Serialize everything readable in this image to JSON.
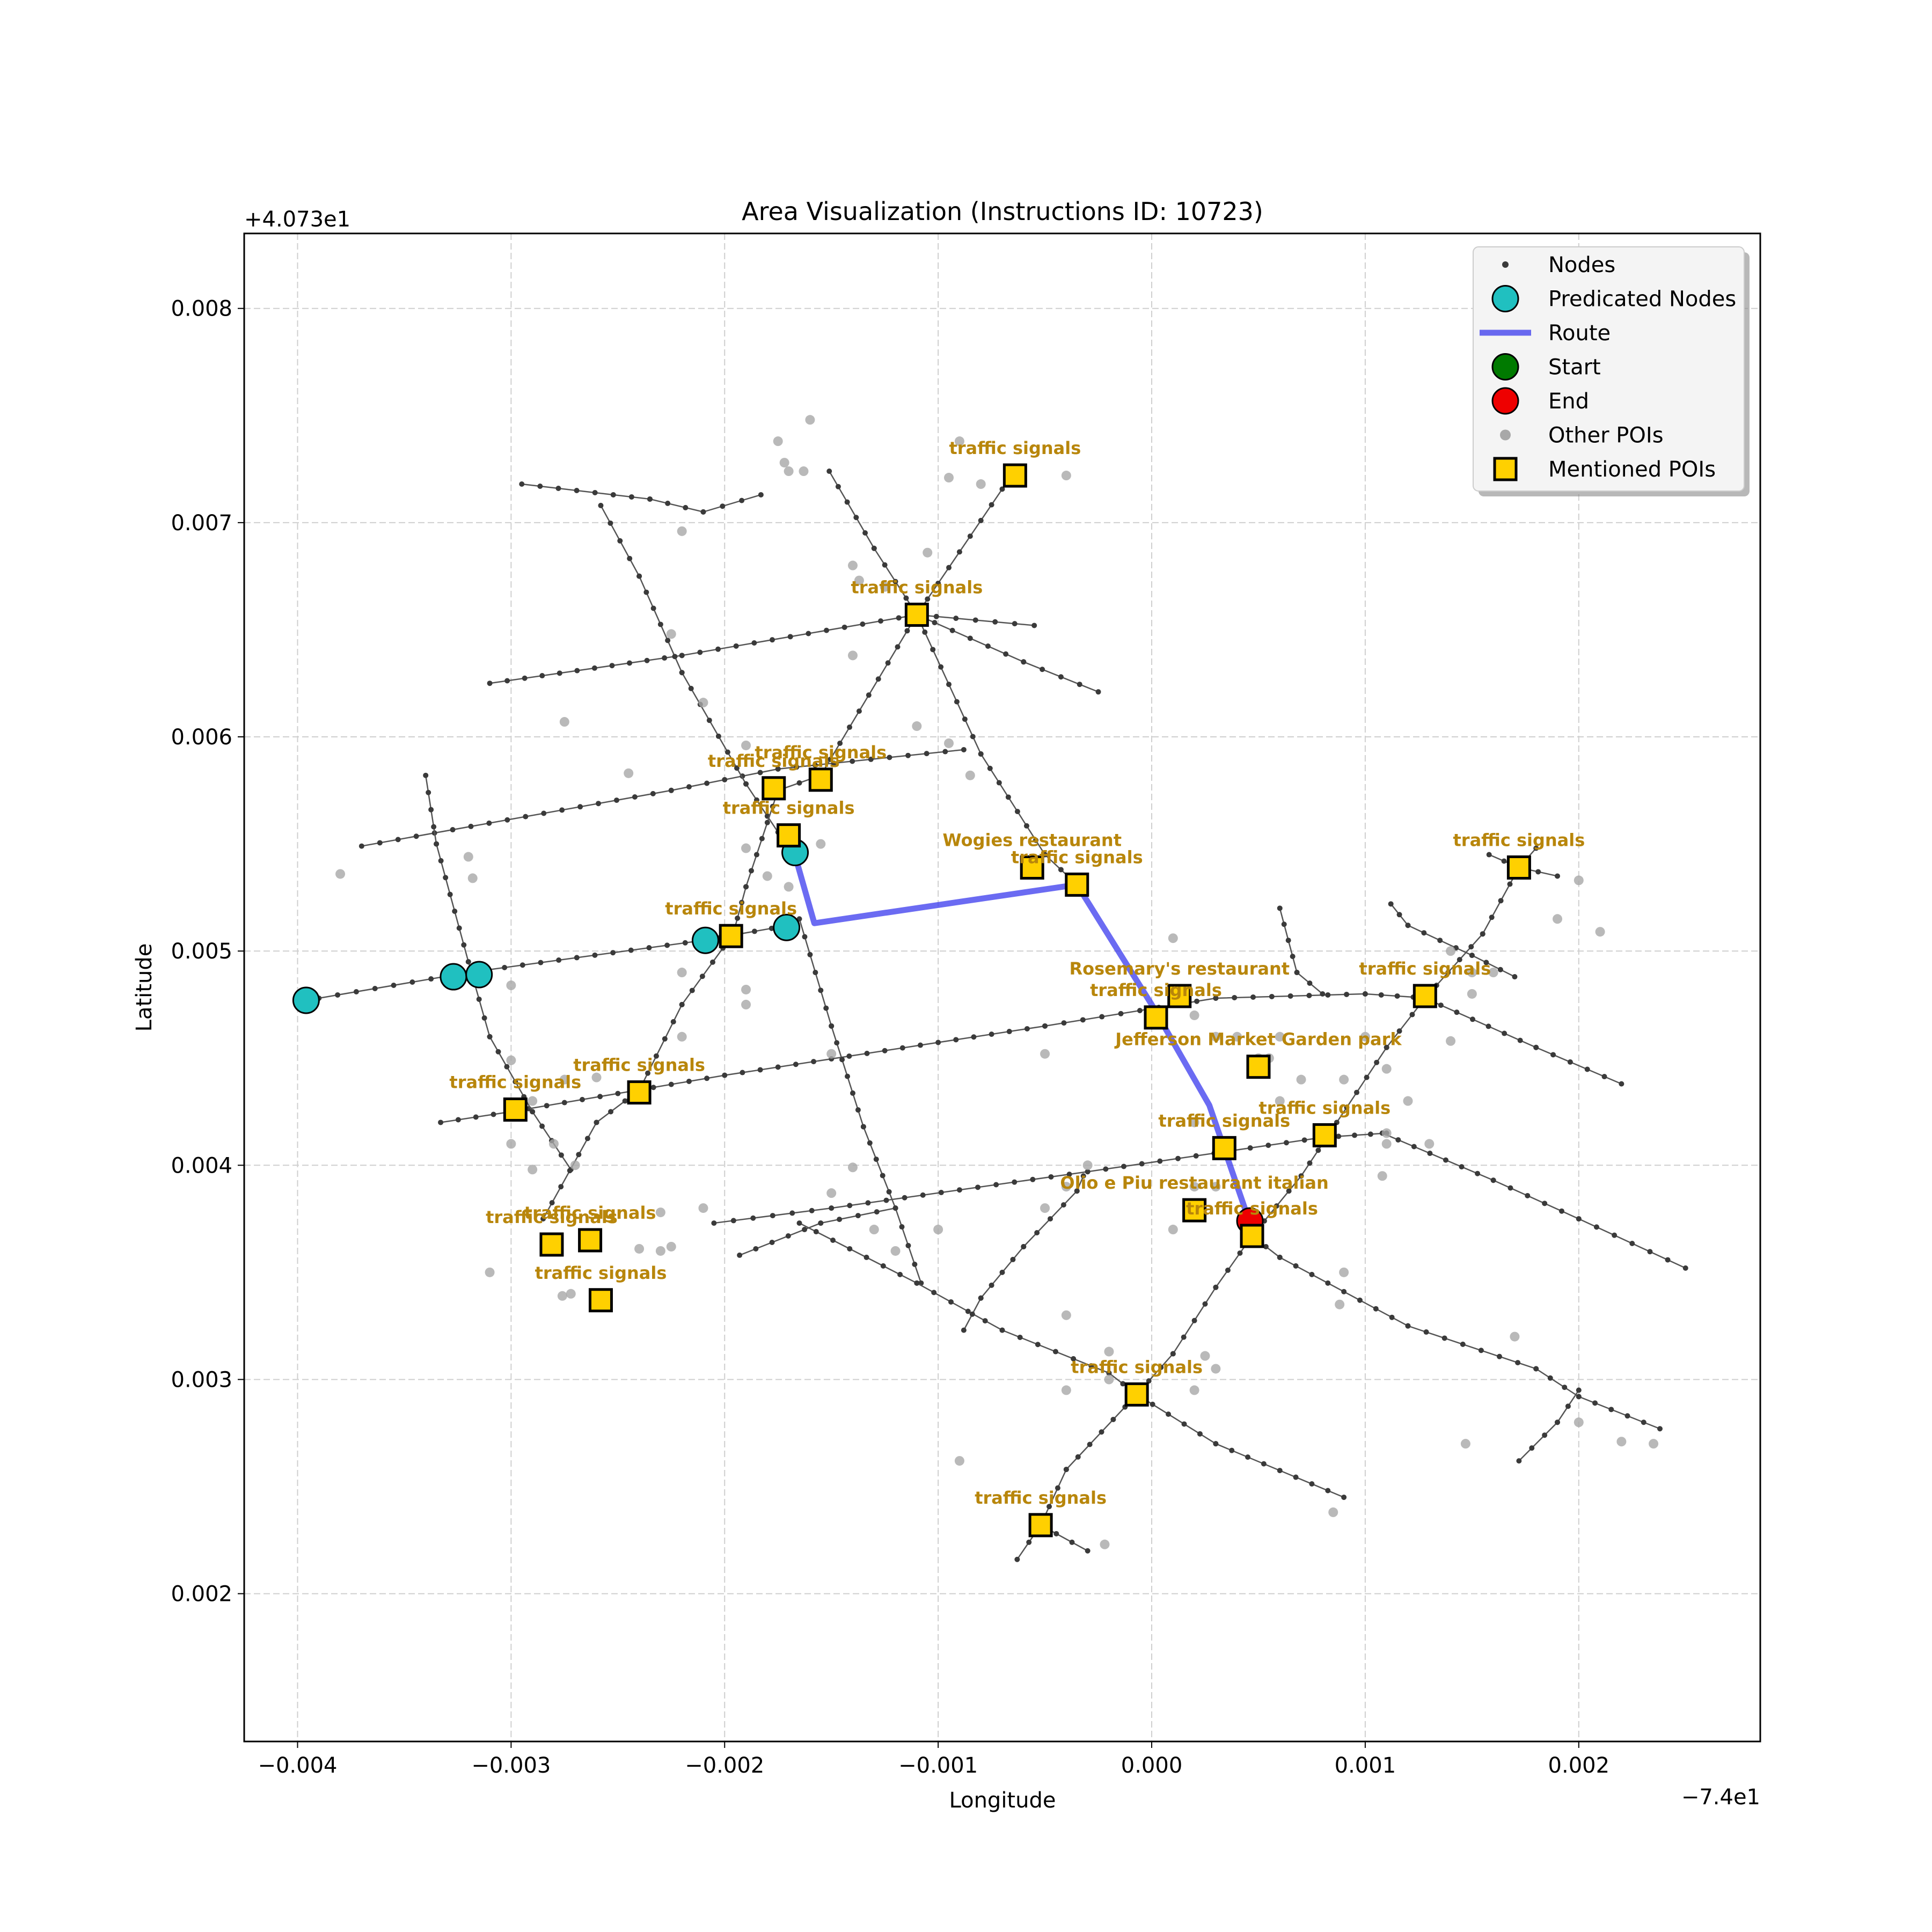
{
  "title": "Area Visualization (Instructions ID: 10723)",
  "xlabel": "Longitude",
  "ylabel": "Latitude",
  "x_offset_label": "−7.4e1",
  "y_offset_label": "+4.073e1",
  "colors": {
    "node": "#3a3a3a",
    "street": "#555555",
    "predicated": "#20c0c0",
    "route": "#3a3aee",
    "start": "#007a00",
    "end": "#ee0000",
    "other_poi": "#a8a8a8",
    "mentioned_poi": "#ffd000",
    "poi_text": "#b8860b"
  },
  "chart_data": {
    "type": "scatter",
    "xlim": [
      -0.00425,
      0.00285
    ],
    "ylim": [
      0.00131,
      0.00835
    ],
    "x_ticks": [
      {
        "value": -0.004,
        "label": "−0.004"
      },
      {
        "value": -0.003,
        "label": "−0.003"
      },
      {
        "value": -0.002,
        "label": "−0.002"
      },
      {
        "value": -0.001,
        "label": "−0.001"
      },
      {
        "value": 0.0,
        "label": "0.000"
      },
      {
        "value": 0.001,
        "label": "0.001"
      },
      {
        "value": 0.002,
        "label": "0.002"
      }
    ],
    "y_ticks": [
      {
        "value": 0.002,
        "label": "0.002"
      },
      {
        "value": 0.003,
        "label": "0.003"
      },
      {
        "value": 0.004,
        "label": "0.004"
      },
      {
        "value": 0.005,
        "label": "0.005"
      },
      {
        "value": 0.006,
        "label": "0.006"
      },
      {
        "value": 0.007,
        "label": "0.007"
      },
      {
        "value": 0.008,
        "label": "0.008"
      }
    ],
    "grid": true,
    "legend": {
      "position": "upper-right",
      "entries": [
        {
          "label": "Nodes",
          "kind": "node"
        },
        {
          "label": "Predicated Nodes",
          "kind": "predicated"
        },
        {
          "label": "Route",
          "kind": "route"
        },
        {
          "label": "Start",
          "kind": "start"
        },
        {
          "label": "End",
          "kind": "end"
        },
        {
          "label": "Other POIs",
          "kind": "other_poi"
        },
        {
          "label": "Mentioned POIs",
          "kind": "mentioned_poi"
        }
      ]
    },
    "streets": [
      [
        [
          -0.0037,
          0.00549
        ],
        [
          -0.00225,
          0.00575
        ],
        [
          -0.00175,
          0.00585
        ],
        [
          -0.00088,
          0.00594
        ]
      ],
      [
        [
          -0.0031,
          0.00625
        ],
        [
          -0.0022,
          0.00638
        ],
        [
          -0.0011,
          0.00657
        ],
        [
          -0.00055,
          0.00652
        ]
      ],
      [
        [
          -0.00295,
          0.00718
        ],
        [
          -0.00235,
          0.00711
        ],
        [
          -0.0021,
          0.00705
        ],
        [
          -0.00183,
          0.00713
        ]
      ],
      [
        [
          -0.0039,
          0.00478
        ],
        [
          -0.0032,
          0.0049
        ],
        [
          -0.0021,
          0.00505
        ],
        [
          -0.0017,
          0.00512
        ]
      ],
      [
        [
          -0.00333,
          0.0042
        ],
        [
          -0.003,
          0.00425
        ],
        [
          -0.002,
          0.00442
        ],
        [
          -0.0005,
          0.00465
        ],
        [
          0.0003,
          0.00478
        ],
        [
          0.001,
          0.0048
        ],
        [
          0.0013,
          0.00478
        ]
      ],
      [
        [
          -0.00205,
          0.00373
        ],
        [
          -0.0015,
          0.0038
        ],
        [
          -0.0003,
          0.00397
        ],
        [
          0.0008,
          0.00413
        ],
        [
          0.0011,
          0.00415
        ]
      ],
      [
        [
          -0.00193,
          0.00358
        ],
        [
          -0.00155,
          0.00373
        ],
        [
          -0.0012,
          0.0038
        ]
      ],
      [
        [
          -0.0034,
          0.00582
        ],
        [
          -0.00335,
          0.0055
        ],
        [
          -0.0032,
          0.00495
        ],
        [
          -0.0031,
          0.0046
        ],
        [
          -0.0029,
          0.00425
        ],
        [
          -0.00272,
          0.00398
        ]
      ],
      [
        [
          -0.00258,
          0.00708
        ],
        [
          -0.0024,
          0.00675
        ],
        [
          -0.0022,
          0.0063
        ],
        [
          -0.0019,
          0.00578
        ],
        [
          -0.0017,
          0.00548
        ]
      ],
      [
        [
          -0.00285,
          0.00375
        ],
        [
          -0.0026,
          0.0042
        ],
        [
          -0.0024,
          0.00435
        ],
        [
          -0.0022,
          0.00475
        ],
        [
          -0.00196,
          0.00508
        ],
        [
          -0.0019,
          0.0053
        ],
        [
          -0.00175,
          0.00575
        ],
        [
          -0.00155,
          0.00582
        ],
        [
          -0.0011,
          0.00657
        ],
        [
          -0.00065,
          0.00723
        ]
      ],
      [
        [
          -0.00151,
          0.00724
        ],
        [
          -0.0013,
          0.00688
        ],
        [
          -0.0011,
          0.00657
        ],
        [
          -0.0008,
          0.00592
        ],
        [
          -0.0005,
          0.00545
        ],
        [
          -0.00035,
          0.00531
        ]
      ],
      [
        [
          -0.0011,
          0.00657
        ],
        [
          -0.0006,
          0.00635
        ],
        [
          -0.00025,
          0.00621
        ]
      ],
      [
        [
          -0.00165,
          0.00515
        ],
        [
          -0.0015,
          0.00465
        ],
        [
          -0.00135,
          0.00418
        ],
        [
          -0.0012,
          0.0038
        ],
        [
          -0.00108,
          0.00345
        ]
      ],
      [
        [
          -0.00165,
          0.00373
        ],
        [
          -0.0011,
          0.00345
        ],
        [
          -0.0007,
          0.00323
        ],
        [
          -0.0002,
          0.00303
        ],
        [
          -7e-05,
          0.00293
        ],
        [
          0.0003,
          0.0027
        ],
        [
          0.0009,
          0.00245
        ]
      ],
      [
        [
          -0.00088,
          0.00323
        ],
        [
          -0.0008,
          0.00338
        ],
        [
          -0.0006,
          0.00362
        ],
        [
          -0.00035,
          0.00388
        ],
        [
          -0.00032,
          0.00395
        ]
      ],
      [
        [
          0.00047,
          0.00367
        ],
        [
          0.0003,
          0.00343
        ],
        [
          0.0001,
          0.00312
        ],
        [
          -7e-05,
          0.00293
        ],
        [
          -0.0004,
          0.00258
        ],
        [
          -0.00052,
          0.00232
        ],
        [
          -0.00063,
          0.00216
        ]
      ],
      [
        [
          -0.00052,
          0.00232
        ],
        [
          -0.0003,
          0.0022
        ]
      ],
      [
        [
          0.00047,
          0.00367
        ],
        [
          0.0006,
          0.00357
        ],
        [
          0.0012,
          0.00325
        ],
        [
          0.0018,
          0.00305
        ],
        [
          0.002,
          0.00292
        ],
        [
          0.00238,
          0.00277
        ]
      ],
      [
        [
          0.00172,
          0.00262
        ],
        [
          0.0019,
          0.0028
        ],
        [
          0.002,
          0.00295
        ]
      ],
      [
        [
          0.00047,
          0.00367
        ],
        [
          0.0007,
          0.00395
        ],
        [
          0.00082,
          0.00413
        ],
        [
          0.0011,
          0.00455
        ],
        [
          0.00128,
          0.00478
        ],
        [
          0.00155,
          0.00508
        ],
        [
          0.00172,
          0.00539
        ],
        [
          0.0018,
          0.00548
        ]
      ],
      [
        [
          0.00108,
          0.00415
        ],
        [
          0.0016,
          0.00393
        ],
        [
          0.002,
          0.00375
        ],
        [
          0.0025,
          0.00352
        ]
      ],
      [
        [
          0.00128,
          0.00478
        ],
        [
          0.0018,
          0.00455
        ],
        [
          0.0022,
          0.00438
        ]
      ],
      [
        [
          0.00112,
          0.00522
        ],
        [
          0.0012,
          0.00512
        ],
        [
          0.0015,
          0.00498
        ],
        [
          0.0017,
          0.00488
        ]
      ],
      [
        [
          0.00158,
          0.00545
        ],
        [
          0.00172,
          0.00539
        ],
        [
          0.0019,
          0.00535
        ]
      ],
      [
        [
          0.0006,
          0.0052
        ],
        [
          0.00068,
          0.0049
        ],
        [
          0.0008,
          0.0048
        ]
      ]
    ],
    "other_pois": [
      [
        -0.0016,
        0.00748
      ],
      [
        -0.00175,
        0.00738
      ],
      [
        -0.00172,
        0.00728
      ],
      [
        -0.0017,
        0.00724
      ],
      [
        -0.00163,
        0.00724
      ],
      [
        -0.0022,
        0.00696
      ],
      [
        -0.0014,
        0.0068
      ],
      [
        -0.00137,
        0.00673
      ],
      [
        -0.00125,
        0.0067
      ],
      [
        -0.00105,
        0.00686
      ],
      [
        -0.0008,
        0.00718
      ],
      [
        -0.00095,
        0.00721
      ],
      [
        -0.0004,
        0.00722
      ],
      [
        -0.0009,
        0.00738
      ],
      [
        -0.00225,
        0.00648
      ],
      [
        -0.0014,
        0.00638
      ],
      [
        -0.0021,
        0.00616
      ],
      [
        -0.0011,
        0.00605
      ],
      [
        -0.00275,
        0.00607
      ],
      [
        -0.00245,
        0.00583
      ],
      [
        -0.0019,
        0.00596
      ],
      [
        -0.00085,
        0.00582
      ],
      [
        -0.00095,
        0.00597
      ],
      [
        -0.0038,
        0.00536
      ],
      [
        -0.0032,
        0.00544
      ],
      [
        -0.00318,
        0.00534
      ],
      [
        -0.0018,
        0.00535
      ],
      [
        -0.0019,
        0.00548
      ],
      [
        -0.0017,
        0.0053
      ],
      [
        -0.00155,
        0.0055
      ],
      [
        -0.0022,
        0.0049
      ],
      [
        -0.0019,
        0.00475
      ],
      [
        -0.0019,
        0.00482
      ],
      [
        -0.0015,
        0.00452
      ],
      [
        -0.003,
        0.00484
      ],
      [
        -0.003,
        0.00449
      ],
      [
        -0.0026,
        0.00441
      ],
      [
        -0.00275,
        0.0044
      ],
      [
        -0.0029,
        0.0043
      ],
      [
        -0.003,
        0.0041
      ],
      [
        -0.0028,
        0.0041
      ],
      [
        -0.0027,
        0.004
      ],
      [
        -0.0029,
        0.00398
      ],
      [
        -0.0014,
        0.00399
      ],
      [
        -0.0015,
        0.00387
      ],
      [
        -0.0021,
        0.0038
      ],
      [
        -0.0023,
        0.00378
      ],
      [
        -0.0023,
        0.0036
      ],
      [
        -0.00225,
        0.00362
      ],
      [
        -0.0024,
        0.00361
      ],
      [
        -0.00276,
        0.00339
      ],
      [
        -0.00272,
        0.0034
      ],
      [
        -0.0031,
        0.0035
      ],
      [
        -0.0013,
        0.0037
      ],
      [
        -0.0004,
        0.0033
      ],
      [
        -0.0009,
        0.00262
      ],
      [
        -0.0004,
        0.00295
      ],
      [
        -0.0002,
        0.003
      ],
      [
        -0.0002,
        0.00313
      ],
      [
        0.00025,
        0.00311
      ],
      [
        0.0003,
        0.00305
      ],
      [
        0.0002,
        0.00295
      ],
      [
        -0.00022,
        0.00223
      ],
      [
        0.00085,
        0.00238
      ],
      [
        0.0009,
        0.0035
      ],
      [
        0.00088,
        0.00335
      ],
      [
        0.0011,
        0.0041
      ],
      [
        0.0011,
        0.00415
      ],
      [
        0.00108,
        0.00395
      ],
      [
        0.0012,
        0.0043
      ],
      [
        0.0013,
        0.0041
      ],
      [
        0.0006,
        0.0043
      ],
      [
        0.0007,
        0.0044
      ],
      [
        0.0009,
        0.0044
      ],
      [
        0.0011,
        0.00445
      ],
      [
        0.00055,
        0.0045
      ],
      [
        0.0003,
        0.0046
      ],
      [
        0.0004,
        0.0046
      ],
      [
        0.0006,
        0.0046
      ],
      [
        0.0002,
        0.0047
      ],
      [
        0.0005,
        0.0045
      ],
      [
        0.0001,
        0.00506
      ],
      [
        -0.0005,
        0.00452
      ],
      [
        0.001,
        0.0046
      ],
      [
        0.0014,
        0.00458
      ],
      [
        0.0014,
        0.005
      ],
      [
        0.0015,
        0.0049
      ],
      [
        0.0019,
        0.00515
      ],
      [
        0.002,
        0.00533
      ],
      [
        0.0021,
        0.00509
      ],
      [
        0.0015,
        0.0048
      ],
      [
        0.0016,
        0.0049
      ],
      [
        0.00147,
        0.0027
      ],
      [
        0.002,
        0.0028
      ],
      [
        0.0022,
        0.00271
      ],
      [
        0.00235,
        0.0027
      ],
      [
        0.0017,
        0.0032
      ],
      [
        -0.0004,
        0.0039
      ],
      [
        -0.0003,
        0.004
      ],
      [
        0.0002,
        0.0039
      ],
      [
        0.0003,
        0.0039
      ],
      [
        0.0001,
        0.0037
      ],
      [
        -0.0005,
        0.0038
      ],
      [
        0.0002,
        0.0042
      ],
      [
        -0.0012,
        0.0036
      ],
      [
        -0.001,
        0.0037
      ],
      [
        -0.0022,
        0.0046
      ]
    ],
    "route": [
      [
        -0.00168,
        0.00548
      ],
      [
        -0.00158,
        0.00513
      ],
      [
        -0.00035,
        0.00531
      ],
      [
        0.0,
        0.00475
      ],
      [
        0.00027,
        0.00428
      ],
      [
        0.00046,
        0.00373
      ]
    ],
    "predicated_nodes": [
      [
        -0.00396,
        0.00477
      ],
      [
        -0.00327,
        0.00488
      ],
      [
        -0.00315,
        0.00489
      ],
      [
        -0.00209,
        0.00505
      ],
      [
        -0.00171,
        0.00511
      ],
      [
        -0.00167,
        0.00546
      ]
    ],
    "start": [],
    "end": [
      [
        0.00046,
        0.00374
      ]
    ],
    "mentioned_pois": [
      {
        "label": "traffic signals",
        "x": -0.00064,
        "y": 0.00722
      },
      {
        "label": "traffic signals",
        "x": -0.0011,
        "y": 0.00657
      },
      {
        "label": "traffic signals",
        "x": -0.00155,
        "y": 0.0058
      },
      {
        "label": "traffic signals",
        "x": -0.00177,
        "y": 0.00576
      },
      {
        "label": "traffic signals",
        "x": -0.0017,
        "y": 0.00554
      },
      {
        "label": "Wogies restaurant",
        "x": -0.00056,
        "y": 0.00539
      },
      {
        "label": "traffic signals",
        "x": -0.00035,
        "y": 0.00531
      },
      {
        "label": "traffic signals",
        "x": -0.00197,
        "y": 0.00507
      },
      {
        "label": "traffic signals",
        "x": 0.00172,
        "y": 0.00539
      },
      {
        "label": "Rosemary's restaurant",
        "x": 0.00013,
        "y": 0.00479
      },
      {
        "label": "traffic signals",
        "x": 2e-05,
        "y": 0.00469
      },
      {
        "label": "traffic signals",
        "x": 0.00128,
        "y": 0.00479
      },
      {
        "label": "Jefferson Market Garden   park",
        "x": 0.0005,
        "y": 0.00446
      },
      {
        "label": "traffic signals",
        "x": -0.00298,
        "y": 0.00426
      },
      {
        "label": "traffic signals",
        "x": -0.0024,
        "y": 0.00434
      },
      {
        "label": "traffic signals",
        "x": 0.00034,
        "y": 0.00408
      },
      {
        "label": "traffic signals",
        "x": 0.00081,
        "y": 0.00414
      },
      {
        "label": "Olio e Piu restaurant italian",
        "x": 0.0002,
        "y": 0.00379
      },
      {
        "label": "traffic signals",
        "x": 0.00047,
        "y": 0.00367
      },
      {
        "label": "traffic signals",
        "x": -0.00281,
        "y": 0.00363
      },
      {
        "label": "traffic signals",
        "x": -0.00263,
        "y": 0.00365
      },
      {
        "label": "traffic signals",
        "x": -0.00258,
        "y": 0.00337
      },
      {
        "label": "traffic signals",
        "x": -7e-05,
        "y": 0.00293
      },
      {
        "label": "traffic signals",
        "x": -0.00052,
        "y": 0.00232
      }
    ]
  }
}
